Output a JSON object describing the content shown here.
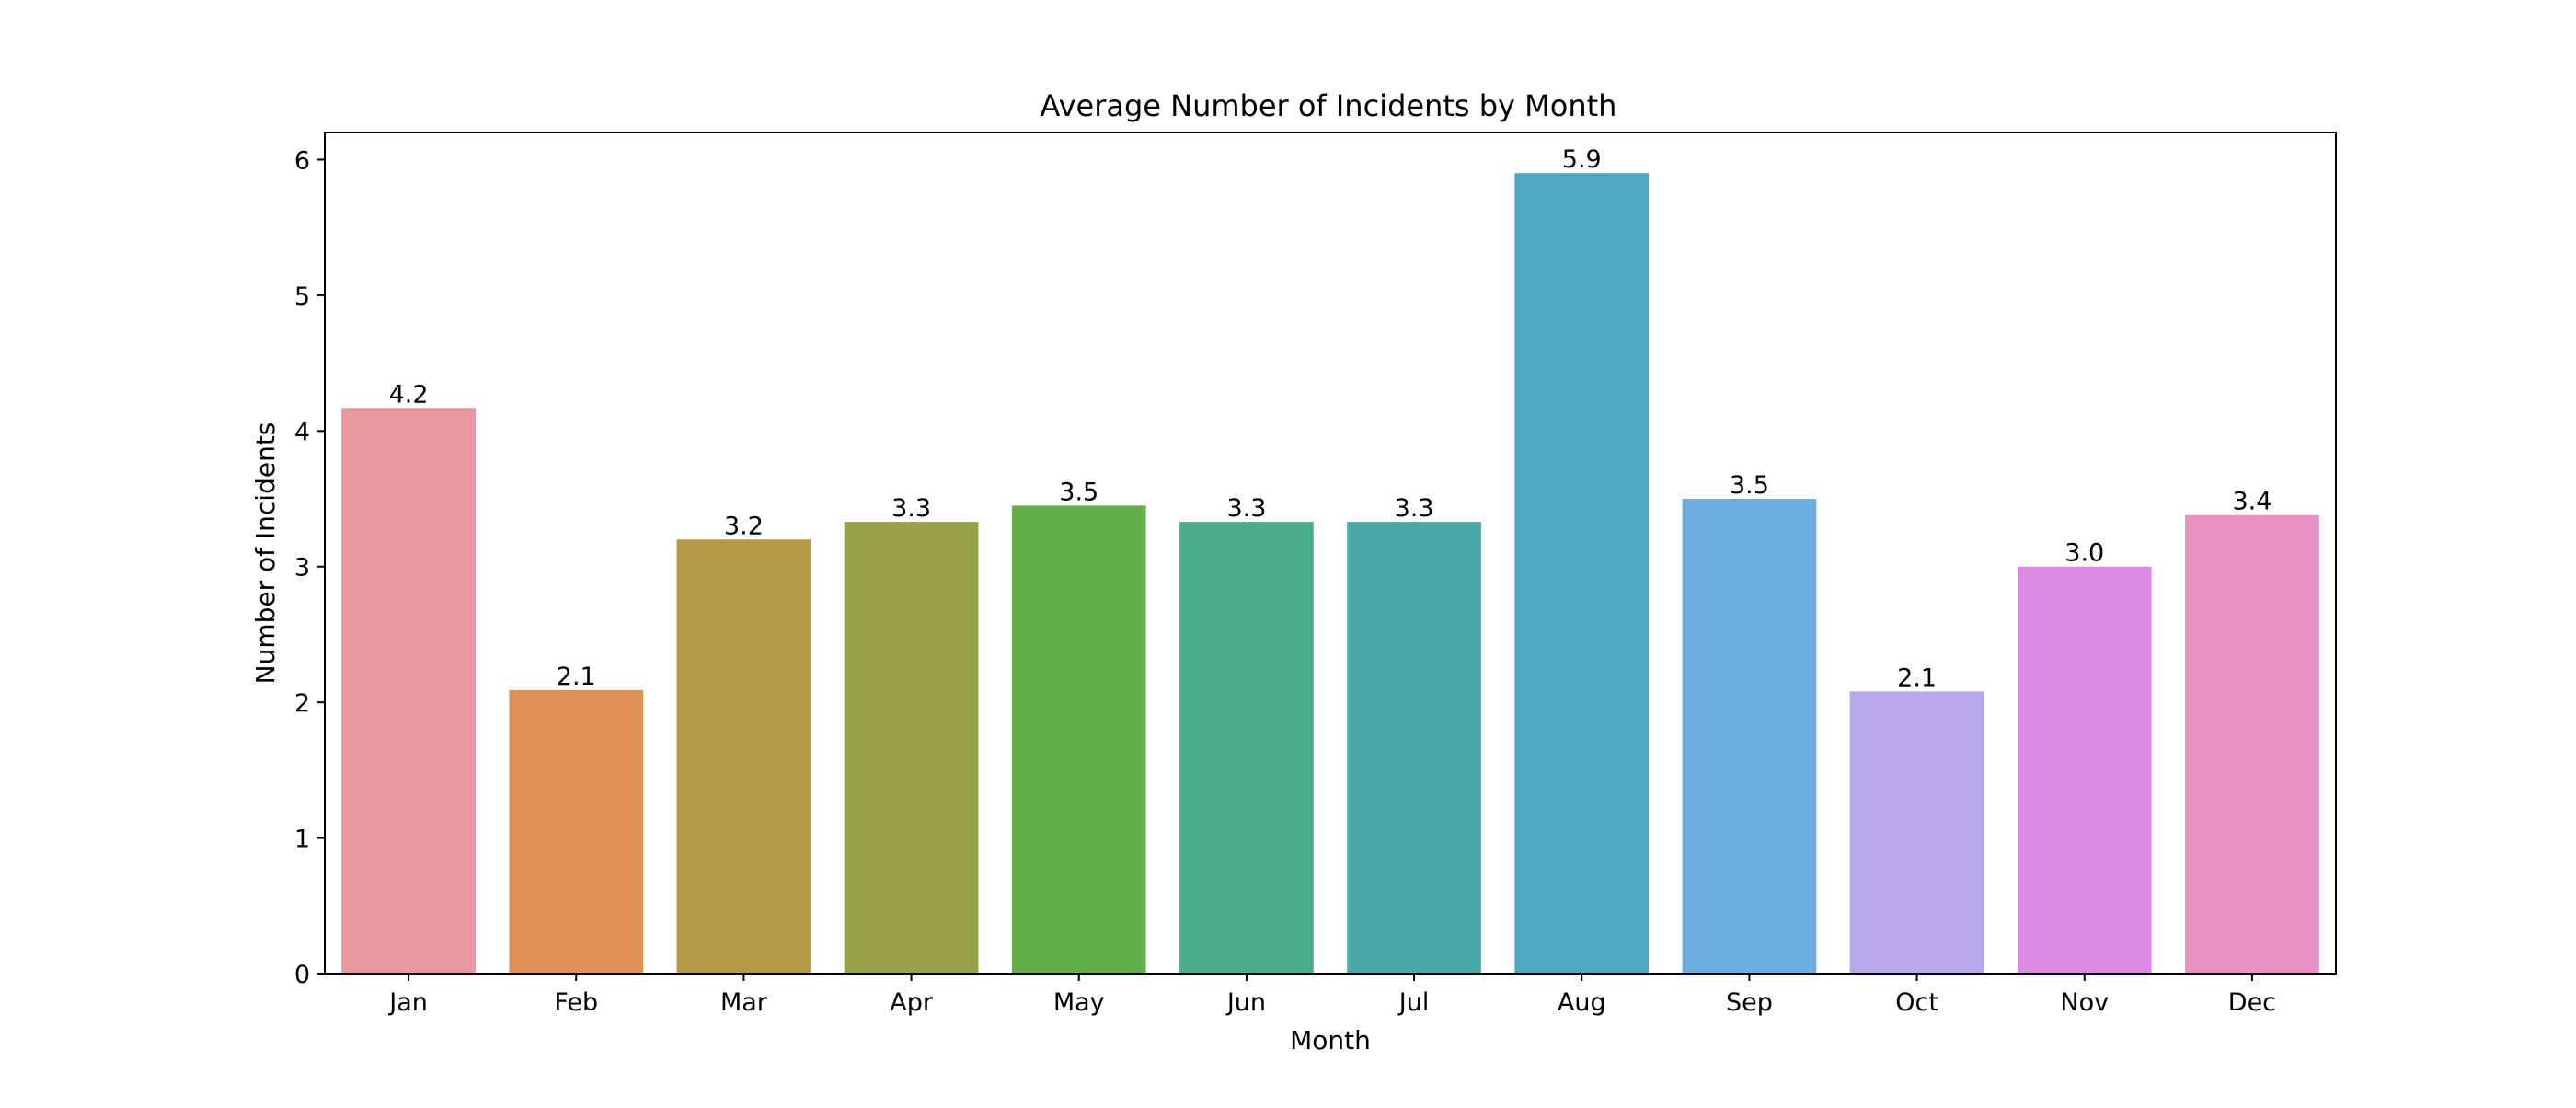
{
  "chart_data": {
    "type": "bar",
    "title": "Average Number of Incidents by Month",
    "xlabel": "Month",
    "ylabel": "Number of Incidents",
    "categories": [
      "Jan",
      "Feb",
      "Mar",
      "Apr",
      "May",
      "Jun",
      "Jul",
      "Aug",
      "Sep",
      "Oct",
      "Nov",
      "Dec"
    ],
    "values": [
      4.17,
      2.09,
      3.2,
      3.33,
      3.45,
      3.33,
      3.33,
      5.9,
      3.5,
      2.08,
      3.0,
      3.38
    ],
    "value_labels": [
      "4.2",
      "2.1",
      "3.2",
      "3.3",
      "3.5",
      "3.3",
      "3.3",
      "5.9",
      "3.5",
      "2.1",
      "3.0",
      "3.4"
    ],
    "bar_colors": [
      "#e8969f",
      "#df9158",
      "#b69849",
      "#99a349",
      "#62ae4a",
      "#4dad8a",
      "#4aaaa7",
      "#4ea8c0",
      "#6badde",
      "#b6a7eb",
      "#dd8ce6",
      "#e690c4"
    ],
    "ylim": [
      0,
      6.2
    ],
    "yticks": [
      "0",
      "1",
      "2",
      "3",
      "4",
      "5",
      "6"
    ],
    "grid": false,
    "legend": "none"
  }
}
